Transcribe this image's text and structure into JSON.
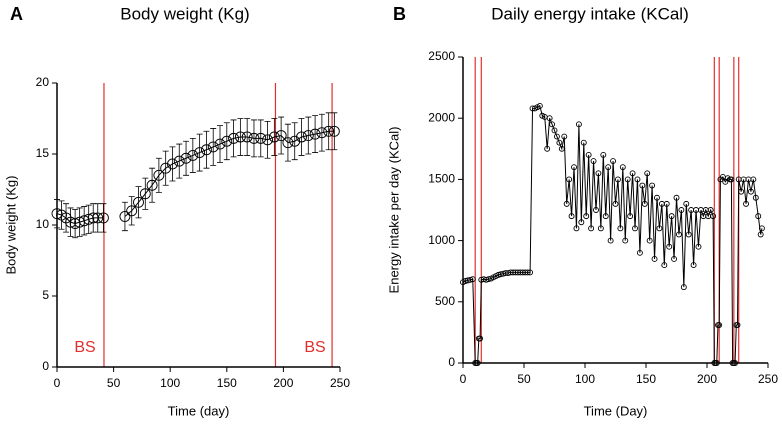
{
  "chart_data": [
    {
      "type": "line",
      "panel_label": "A",
      "title": "Body weight (Kg)",
      "xlabel": "Time (day)",
      "ylabel": "Body weight (Kg)",
      "xlim": [
        0,
        250
      ],
      "xticks": [
        0,
        50,
        100,
        150,
        200,
        250
      ],
      "ylim": [
        0,
        20
      ],
      "yticks": [
        0,
        5,
        10,
        15,
        20
      ],
      "vlines": [
        41.5,
        193,
        243
      ],
      "vline_color": "#e0302e",
      "annotations": [
        "BS",
        "BS"
      ],
      "annotation_color": "#e0302e",
      "series": [
        {
          "name": "Body weight",
          "color": "#000000",
          "marker": "circle",
          "x": [
            0,
            4,
            8,
            12,
            16,
            20,
            24,
            28,
            32,
            36,
            41,
            50,
            60,
            66,
            72,
            78,
            84,
            90,
            96,
            102,
            108,
            114,
            120,
            126,
            132,
            138,
            144,
            150,
            156,
            162,
            168,
            174,
            180,
            186,
            192,
            198,
            204,
            210,
            216,
            222,
            228,
            234,
            240,
            245
          ],
          "values": [
            10.8,
            10.7,
            10.5,
            10.2,
            10.1,
            10.2,
            10.3,
            10.4,
            10.5,
            10.5,
            10.5,
            null,
            10.6,
            11.0,
            11.6,
            12.2,
            12.8,
            13.5,
            14.0,
            14.3,
            14.5,
            14.7,
            14.9,
            15.1,
            15.3,
            15.5,
            15.7,
            15.9,
            16.1,
            16.2,
            16.2,
            16.1,
            16.1,
            16.0,
            16.2,
            16.3,
            15.8,
            15.9,
            16.2,
            16.3,
            16.4,
            16.5,
            16.6,
            16.6
          ],
          "errors": [
            1.0,
            1.0,
            1.0,
            1.0,
            1.0,
            1.0,
            1.0,
            1.0,
            1.0,
            1.0,
            1.0,
            null,
            1.0,
            1.0,
            1.1,
            1.1,
            1.2,
            1.2,
            1.2,
            1.2,
            1.2,
            1.2,
            1.2,
            1.3,
            1.3,
            1.3,
            1.3,
            1.3,
            1.3,
            1.3,
            1.3,
            1.3,
            1.3,
            1.3,
            1.3,
            1.3,
            1.3,
            1.3,
            1.3,
            1.3,
            1.3,
            1.3,
            1.3,
            1.3
          ]
        }
      ]
    },
    {
      "type": "line",
      "panel_label": "B",
      "title": "Daily energy intake (KCal)",
      "xlabel": "Time (Day)",
      "ylabel": "Energy intake per day (KCal)",
      "xlim": [
        0,
        250
      ],
      "xticks": [
        0,
        50,
        100,
        150,
        200,
        250
      ],
      "ylim": [
        0,
        2500
      ],
      "yticks": [
        0,
        500,
        1000,
        1500,
        2000,
        2500
      ],
      "vlines": [
        10,
        15,
        206,
        210,
        222,
        226
      ],
      "vline_color": "#e0302e",
      "series": [
        {
          "name": "Energy intake",
          "color": "#000000",
          "marker": "circle",
          "x": [
            0,
            2,
            4,
            6,
            8,
            10,
            11,
            12,
            13,
            14,
            15,
            17,
            19,
            21,
            23,
            25,
            27,
            29,
            31,
            33,
            35,
            37,
            39,
            41,
            43,
            45,
            47,
            49,
            51,
            53,
            55,
            57,
            59,
            61,
            63,
            65,
            67,
            69,
            71,
            73,
            75,
            77,
            79,
            81,
            83,
            85,
            87,
            89,
            91,
            93,
            95,
            97,
            99,
            101,
            103,
            105,
            107,
            109,
            111,
            113,
            115,
            117,
            119,
            121,
            123,
            125,
            127,
            129,
            131,
            133,
            135,
            137,
            139,
            141,
            143,
            145,
            147,
            149,
            151,
            153,
            155,
            157,
            159,
            161,
            163,
            165,
            167,
            169,
            171,
            173,
            175,
            177,
            179,
            181,
            183,
            185,
            187,
            189,
            191,
            193,
            195,
            197,
            199,
            201,
            203,
            205,
            206,
            207,
            208,
            209,
            210,
            211,
            213,
            215,
            217,
            219,
            220,
            221,
            222,
            223,
            224,
            225,
            226,
            228,
            230,
            232,
            234,
            236,
            238,
            240,
            242,
            244,
            245
          ],
          "values": [
            660,
            670,
            675,
            680,
            685,
            0,
            0,
            0,
            200,
            200,
            680,
            685,
            680,
            685,
            690,
            700,
            710,
            720,
            725,
            730,
            735,
            735,
            740,
            740,
            740,
            740,
            740,
            740,
            740,
            740,
            740,
            2080,
            2080,
            2090,
            2100,
            2020,
            2010,
            1750,
            2000,
            1950,
            1900,
            1850,
            1800,
            1750,
            1850,
            1300,
            1500,
            1200,
            1600,
            1100,
            1950,
            1150,
            1800,
            1200,
            1700,
            1100,
            1650,
            1250,
            1550,
            1100,
            1700,
            1200,
            1600,
            1000,
            1650,
            1300,
            1500,
            1100,
            1600,
            1000,
            1500,
            1200,
            1550,
            1100,
            1500,
            900,
            1450,
            1300,
            1550,
            1000,
            1450,
            850,
            1350,
            1100,
            1300,
            800,
            1300,
            950,
            1200,
            850,
            1350,
            1050,
            1250,
            620,
            1300,
            1050,
            1250,
            800,
            1250,
            950,
            1250,
            1200,
            1250,
            1200,
            1250,
            1200,
            0,
            0,
            0,
            310,
            310,
            1500,
            1520,
            1480,
            1510,
            1500,
            1500,
            0,
            0,
            0,
            310,
            310,
            1500,
            1400,
            1500,
            1300,
            1500,
            1400,
            1500,
            1350,
            1200,
            1050,
            1100
          ]
        }
      ]
    }
  ]
}
